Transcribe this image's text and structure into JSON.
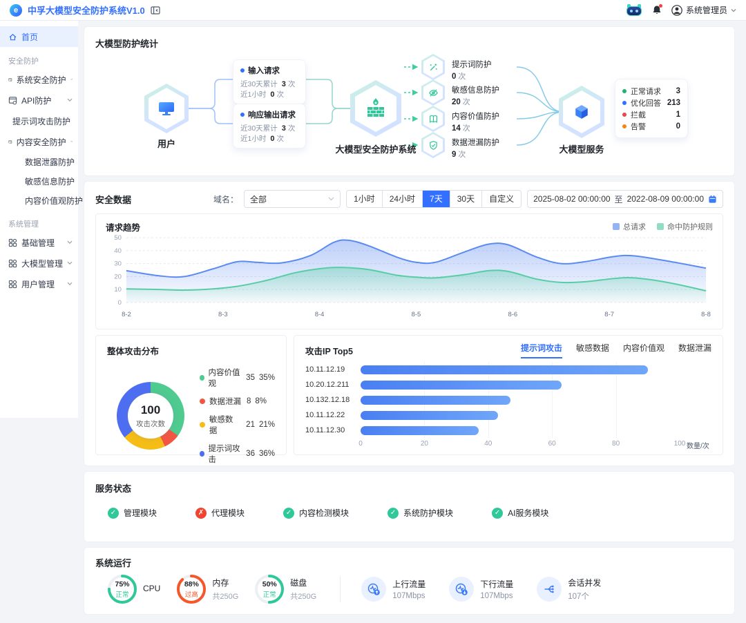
{
  "header": {
    "title": "中孚大模型安全防护系统V1.0",
    "user_name": "系统管理员"
  },
  "sidebar": {
    "home": {
      "label": "首页"
    },
    "groups": [
      {
        "label": "安全防护",
        "items": [
          {
            "label": "系统安全防护"
          },
          {
            "label": "API防护"
          },
          {
            "label": "提示词攻击防护"
          },
          {
            "label": "内容安全防护",
            "children": [
              {
                "label": "数据泄露防护"
              },
              {
                "label": "敏感信息防护"
              },
              {
                "label": "内容价值观防护"
              }
            ]
          }
        ]
      },
      {
        "label": "系统管理",
        "items": [
          {
            "label": "基础管理"
          },
          {
            "label": "大模型管理"
          },
          {
            "label": "用户管理"
          }
        ]
      }
    ]
  },
  "protection_stats": {
    "title": "大模型防护统计",
    "user_node": "用户",
    "system_node": "大模型安全防护系统",
    "service_node": "大模型服务",
    "request_cards": [
      {
        "title": "输入请求",
        "rows": [
          {
            "label": "近30天累计",
            "value": "3",
            "unit": "次"
          },
          {
            "label": "近1小时",
            "value": "0",
            "unit": "次"
          }
        ]
      },
      {
        "title": "响应输出请求",
        "rows": [
          {
            "label": "近30天累计",
            "value": "3",
            "unit": "次"
          },
          {
            "label": "近1小时",
            "value": "0",
            "unit": "次"
          }
        ]
      }
    ],
    "protections": [
      {
        "label": "提示词防护",
        "value": "0",
        "unit": "次"
      },
      {
        "label": "敏感信息防护",
        "value": "20",
        "unit": "次"
      },
      {
        "label": "内容价值防护",
        "value": "14",
        "unit": "次"
      },
      {
        "label": "数据泄漏防护",
        "value": "9",
        "unit": "次"
      }
    ],
    "service_stats": [
      {
        "label": "正常请求",
        "value": "3",
        "color": "#23b26d"
      },
      {
        "label": "优化回答",
        "value": "213",
        "color": "#3370ff"
      },
      {
        "label": "拦截",
        "value": "1",
        "color": "#e5484d"
      },
      {
        "label": "告警",
        "value": "0",
        "color": "#f08519"
      }
    ]
  },
  "security_data": {
    "title": "安全数据",
    "domain_label": "域名：",
    "domain_value": "全部",
    "range_buttons": [
      "1小时",
      "24小时",
      "7天",
      "30天",
      "自定义"
    ],
    "active_range": "7天",
    "date_start": "2025-08-02 00:00:00",
    "date_separator": "至",
    "date_end": "2022-08-09 00:00:00"
  },
  "chart_data": [
    {
      "type": "area",
      "title": "请求趋势",
      "legend": [
        "总请求",
        "命中防护规则"
      ],
      "legend_position": "top-right",
      "colors": [
        "#5b8bf0",
        "#57cda4"
      ],
      "x_ticks": [
        "8-2",
        "8-3",
        "8-4",
        "8-5",
        "8-6",
        "8-7",
        "8-8"
      ],
      "y_ticks": [
        0,
        10,
        20,
        30,
        40,
        50
      ],
      "ylim": [
        0,
        50
      ],
      "grid": "dashed-horizontal",
      "series": [
        {
          "name": "总请求",
          "points": [
            [
              0,
              24.5
            ],
            [
              0.35,
              20.5
            ],
            [
              0.6,
              20
            ],
            [
              0.9,
              26
            ],
            [
              1.15,
              31.5
            ],
            [
              1.35,
              31
            ],
            [
              1.6,
              30.5
            ],
            [
              1.9,
              36
            ],
            [
              2.15,
              46.5
            ],
            [
              2.3,
              48
            ],
            [
              2.5,
              44
            ],
            [
              2.8,
              35
            ],
            [
              3.0,
              31
            ],
            [
              3.2,
              31
            ],
            [
              3.5,
              39
            ],
            [
              3.75,
              45
            ],
            [
              3.95,
              44.5
            ],
            [
              4.25,
              35
            ],
            [
              4.5,
              30
            ],
            [
              4.75,
              31.5
            ],
            [
              5.05,
              35.5
            ],
            [
              5.25,
              36
            ],
            [
              5.6,
              32
            ],
            [
              6,
              26.5
            ]
          ]
        },
        {
          "name": "命中防护规则",
          "points": [
            [
              0,
              10.5
            ],
            [
              0.35,
              10
            ],
            [
              0.6,
              9.5
            ],
            [
              0.9,
              10.5
            ],
            [
              1.15,
              12.5
            ],
            [
              1.45,
              17
            ],
            [
              1.75,
              23
            ],
            [
              2.05,
              26.5
            ],
            [
              2.25,
              27
            ],
            [
              2.5,
              25.5
            ],
            [
              2.8,
              21
            ],
            [
              3.0,
              19.5
            ],
            [
              3.2,
              19
            ],
            [
              3.5,
              21.5
            ],
            [
              3.75,
              24.5
            ],
            [
              3.95,
              24
            ],
            [
              4.25,
              18
            ],
            [
              4.5,
              15.5
            ],
            [
              4.75,
              16
            ],
            [
              5.05,
              18.5
            ],
            [
              5.25,
              19
            ],
            [
              5.6,
              15.5
            ],
            [
              6,
              9
            ]
          ]
        }
      ]
    },
    {
      "type": "pie",
      "title": "整体攻击分布",
      "center_value": "100",
      "center_label": "攻击次数",
      "slices": [
        {
          "label": "内容价值观",
          "value": 35,
          "pct": "35%",
          "color": "#4fcb8f"
        },
        {
          "label": "数据泄漏",
          "value": 8,
          "pct": "8%",
          "color": "#f25643"
        },
        {
          "label": "敏感数据",
          "value": 21,
          "pct": "21%",
          "color": "#f6bd16"
        },
        {
          "label": "提示词攻击",
          "value": 36,
          "pct": "36%",
          "color": "#4e6ef2"
        }
      ]
    },
    {
      "type": "bar",
      "title": "攻击IP Top5",
      "tabs": [
        "提示词攻击",
        "敏感数据",
        "内容价值观",
        "数据泄漏"
      ],
      "active_tab": "提示词攻击",
      "categories": [
        "10.11.12.19",
        "10.20.12.211",
        "10.132.12.18",
        "10.11.12.22",
        "10.11.12.30"
      ],
      "values": [
        90,
        63,
        47,
        43,
        37
      ],
      "xlim": [
        0,
        100
      ],
      "x_ticks": [
        0,
        20,
        40,
        60,
        80,
        100
      ],
      "unit_label": "数量/次"
    }
  ],
  "service_status": {
    "title": "服务状态",
    "ok_color": "#2fc898",
    "error_color": "#f0442e",
    "items": [
      {
        "label": "管理模块",
        "status": "ok"
      },
      {
        "label": "代理模块",
        "status": "error"
      },
      {
        "label": "内容检测模块",
        "status": "ok"
      },
      {
        "label": "系统防护模块",
        "status": "ok"
      },
      {
        "label": "AI服务模块",
        "status": "ok"
      }
    ]
  },
  "system_running": {
    "title": "系统运行",
    "gauges": [
      {
        "name": "CPU",
        "pct": 75,
        "pct_label": "75%",
        "status": "正常",
        "status_color": "#2fc898",
        "sub": ""
      },
      {
        "name": "内存",
        "pct": 88,
        "pct_label": "88%",
        "status": "过高",
        "status_color": "#f5572b",
        "sub": "共250G"
      },
      {
        "name": "磁盘",
        "pct": 50,
        "pct_label": "50%",
        "status": "正常",
        "status_color": "#2fc898",
        "sub": "共250G"
      }
    ],
    "metrics": [
      {
        "label": "上行流量",
        "value": "107Mbps",
        "icon": "upload-traffic-icon"
      },
      {
        "label": "下行流量",
        "value": "107Mbps",
        "icon": "download-traffic-icon"
      },
      {
        "label": "会话并发",
        "value": "107个",
        "icon": "concurrency-icon"
      }
    ]
  }
}
